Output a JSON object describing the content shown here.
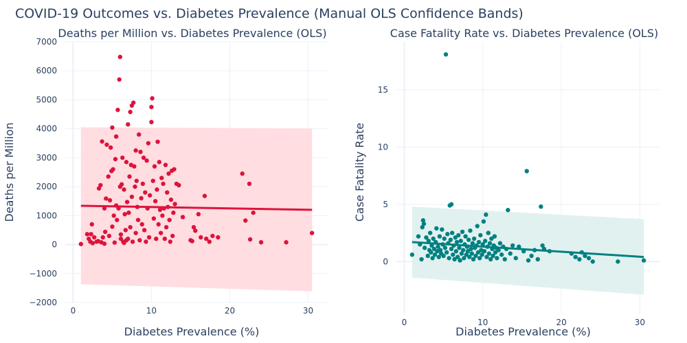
{
  "title": "COVID-19 Outcomes vs. Diabetes Prevalence (Manual OLS Confidence Bands)",
  "chart_data": [
    {
      "type": "scatter",
      "title": "Deaths per Million vs. Diabetes Prevalence (OLS)",
      "xlabel": "Diabetes Prevalence (%)",
      "ylabel": "Deaths per Million",
      "xlim": [
        -1,
        32.5
      ],
      "ylim": [
        -2000,
        7000
      ],
      "xticks": [
        0,
        10,
        20,
        30
      ],
      "yticks": [
        -2000,
        -1000,
        0,
        1000,
        2000,
        3000,
        4000,
        5000,
        6000,
        7000
      ],
      "grid": true,
      "point_color": "#dc143c",
      "line_color": "#dc143c",
      "band_color": "#ffdde1",
      "fit_line": [
        [
          1.0,
          1340
        ],
        [
          30.5,
          1200
        ]
      ],
      "band_upper": [
        [
          1.0,
          4050
        ],
        [
          30.5,
          4010
        ]
      ],
      "band_lower": [
        [
          1.0,
          -1370
        ],
        [
          30.5,
          -1610
        ]
      ],
      "points": [
        [
          1.0,
          20
        ],
        [
          1.8,
          360
        ],
        [
          2.0,
          200
        ],
        [
          2.2,
          100
        ],
        [
          2.3,
          360
        ],
        [
          2.4,
          700
        ],
        [
          2.5,
          50
        ],
        [
          2.7,
          250
        ],
        [
          3.0,
          100
        ],
        [
          3.2,
          120
        ],
        [
          3.3,
          1940
        ],
        [
          3.5,
          2050
        ],
        [
          3.6,
          80
        ],
        [
          3.7,
          3560
        ],
        [
          3.8,
          250
        ],
        [
          4.0,
          1250
        ],
        [
          4.0,
          30
        ],
        [
          4.1,
          440
        ],
        [
          4.2,
          1590
        ],
        [
          4.3,
          3450
        ],
        [
          4.5,
          2350
        ],
        [
          4.6,
          300
        ],
        [
          4.7,
          1530
        ],
        [
          4.8,
          3350
        ],
        [
          4.9,
          2540
        ],
        [
          5.0,
          4040
        ],
        [
          5.0,
          620
        ],
        [
          5.1,
          2600
        ],
        [
          5.2,
          1000
        ],
        [
          5.3,
          70
        ],
        [
          5.4,
          2950
        ],
        [
          5.5,
          1350
        ],
        [
          5.5,
          3730
        ],
        [
          5.6,
          850
        ],
        [
          5.7,
          4650
        ],
        [
          5.8,
          1250
        ],
        [
          5.9,
          5700
        ],
        [
          6.0,
          6480
        ],
        [
          6.0,
          2000
        ],
        [
          6.1,
          350
        ],
        [
          6.1,
          200
        ],
        [
          6.2,
          2080
        ],
        [
          6.3,
          3000
        ],
        [
          6.4,
          100
        ],
        [
          6.5,
          1900
        ],
        [
          6.5,
          60
        ],
        [
          6.6,
          1050
        ],
        [
          6.7,
          500
        ],
        [
          6.8,
          2850
        ],
        [
          6.8,
          150
        ],
        [
          6.9,
          1470
        ],
        [
          7.0,
          4150
        ],
        [
          7.0,
          200
        ],
        [
          7.1,
          1100
        ],
        [
          7.2,
          2350
        ],
        [
          7.3,
          600
        ],
        [
          7.3,
          4580
        ],
        [
          7.4,
          2750
        ],
        [
          7.5,
          1650
        ],
        [
          7.5,
          4800
        ],
        [
          7.6,
          100
        ],
        [
          7.7,
          4900
        ],
        [
          7.8,
          2700
        ],
        [
          7.9,
          2000
        ],
        [
          8.0,
          3250
        ],
        [
          8.0,
          400
        ],
        [
          8.1,
          2200
        ],
        [
          8.2,
          1300
        ],
        [
          8.3,
          850
        ],
        [
          8.4,
          3800
        ],
        [
          8.5,
          150
        ],
        [
          8.6,
          3200
        ],
        [
          8.7,
          1600
        ],
        [
          8.8,
          700
        ],
        [
          8.9,
          2100
        ],
        [
          9.0,
          3000
        ],
        [
          9.1,
          500
        ],
        [
          9.2,
          1800
        ],
        [
          9.3,
          100
        ],
        [
          9.4,
          2900
        ],
        [
          9.5,
          1250
        ],
        [
          9.6,
          3500
        ],
        [
          9.7,
          250
        ],
        [
          9.8,
          1700
        ],
        [
          10.0,
          4230
        ],
        [
          10.0,
          4750
        ],
        [
          10.1,
          5050
        ],
        [
          10.2,
          2200
        ],
        [
          10.3,
          900
        ],
        [
          10.4,
          2700
        ],
        [
          10.5,
          1500
        ],
        [
          10.6,
          200
        ],
        [
          10.7,
          1900
        ],
        [
          10.8,
          3550
        ],
        [
          10.9,
          700
        ],
        [
          11.0,
          2850
        ],
        [
          11.1,
          1200
        ],
        [
          11.2,
          400
        ],
        [
          11.3,
          2300
        ],
        [
          11.4,
          1000
        ],
        [
          11.5,
          2100
        ],
        [
          11.6,
          1250
        ],
        [
          11.7,
          200
        ],
        [
          11.8,
          2750
        ],
        [
          11.9,
          600
        ],
        [
          12.0,
          1800
        ],
        [
          12.1,
          1300
        ],
        [
          12.2,
          2450
        ],
        [
          12.3,
          850
        ],
        [
          12.4,
          100
        ],
        [
          12.5,
          1550
        ],
        [
          12.6,
          2550
        ],
        [
          12.7,
          300
        ],
        [
          12.8,
          1100
        ],
        [
          12.9,
          2600
        ],
        [
          13.0,
          1400
        ],
        [
          13.2,
          2100
        ],
        [
          13.5,
          2050
        ],
        [
          14.0,
          950
        ],
        [
          15.0,
          150
        ],
        [
          15.2,
          120
        ],
        [
          15.4,
          600
        ],
        [
          15.6,
          480
        ],
        [
          16.0,
          1050
        ],
        [
          16.3,
          250
        ],
        [
          16.8,
          1680
        ],
        [
          17.0,
          200
        ],
        [
          17.4,
          100
        ],
        [
          17.8,
          300
        ],
        [
          18.5,
          250
        ],
        [
          21.6,
          2450
        ],
        [
          22.0,
          830
        ],
        [
          22.5,
          2100
        ],
        [
          22.6,
          180
        ],
        [
          23.0,
          1100
        ],
        [
          24.0,
          80
        ],
        [
          27.2,
          80
        ],
        [
          30.5,
          400
        ]
      ]
    },
    {
      "type": "scatter",
      "title": "Case Fatality Rate vs. Diabetes Prevalence (OLS)",
      "xlabel": "Diabetes Prevalence (%)",
      "ylabel": "Case Fatality Rate",
      "xlim": [
        -1,
        32.5
      ],
      "ylim": [
        -4.6,
        19.2
      ],
      "xticks": [
        0,
        10,
        20,
        30
      ],
      "yticks": [
        0,
        5,
        10,
        15
      ],
      "grid": true,
      "point_color": "#008080",
      "line_color": "#008080",
      "band_color": "#e1f1f0",
      "fit_line": [
        [
          1.0,
          1.7
        ],
        [
          30.5,
          0.4
        ]
      ],
      "band_upper": [
        [
          1.0,
          4.8
        ],
        [
          30.5,
          3.7
        ]
      ],
      "band_lower": [
        [
          1.0,
          -1.4
        ],
        [
          30.5,
          -2.9
        ]
      ],
      "points": [
        [
          1.0,
          0.6
        ],
        [
          1.8,
          2.2
        ],
        [
          2.0,
          1.5
        ],
        [
          2.2,
          0.2
        ],
        [
          2.3,
          3.0
        ],
        [
          2.4,
          3.6
        ],
        [
          2.5,
          3.3
        ],
        [
          2.6,
          1.2
        ],
        [
          2.8,
          2.1
        ],
        [
          3.0,
          0.5
        ],
        [
          3.1,
          1.8
        ],
        [
          3.2,
          1.0
        ],
        [
          3.3,
          2.5
        ],
        [
          3.4,
          0.8
        ],
        [
          3.5,
          1.4
        ],
        [
          3.6,
          0.3
        ],
        [
          3.7,
          2.0
        ],
        [
          3.8,
          1.1
        ],
        [
          3.9,
          0.6
        ],
        [
          4.0,
          1.7
        ],
        [
          4.1,
          2.9
        ],
        [
          4.2,
          0.9
        ],
        [
          4.3,
          1.3
        ],
        [
          4.4,
          0.4
        ],
        [
          4.5,
          2.2
        ],
        [
          4.6,
          1.0
        ],
        [
          4.7,
          0.7
        ],
        [
          4.8,
          2.8
        ],
        [
          4.9,
          1.5
        ],
        [
          5.0,
          0.5
        ],
        [
          5.1,
          2.0
        ],
        [
          5.2,
          1.2
        ],
        [
          5.3,
          18.1
        ],
        [
          5.4,
          0.8
        ],
        [
          5.5,
          2.4
        ],
        [
          5.6,
          1.6
        ],
        [
          5.7,
          0.3
        ],
        [
          5.8,
          4.9
        ],
        [
          5.9,
          1.9
        ],
        [
          6.0,
          5.0
        ],
        [
          6.0,
          1.1
        ],
        [
          6.1,
          2.5
        ],
        [
          6.2,
          0.6
        ],
        [
          6.3,
          1.4
        ],
        [
          6.4,
          0.2
        ],
        [
          6.5,
          2.1
        ],
        [
          6.6,
          0.9
        ],
        [
          6.7,
          1.7
        ],
        [
          6.8,
          0.4
        ],
        [
          6.9,
          2.3
        ],
        [
          7.0,
          1.2
        ],
        [
          7.1,
          0.1
        ],
        [
          7.2,
          1.8
        ],
        [
          7.3,
          0.7
        ],
        [
          7.4,
          2.6
        ],
        [
          7.5,
          1.0
        ],
        [
          7.6,
          0.3
        ],
        [
          7.7,
          1.5
        ],
        [
          7.8,
          2.2
        ],
        [
          7.9,
          0.6
        ],
        [
          8.0,
          1.3
        ],
        [
          8.1,
          0.9
        ],
        [
          8.2,
          1.9
        ],
        [
          8.3,
          0.4
        ],
        [
          8.4,
          2.7
        ],
        [
          8.5,
          1.1
        ],
        [
          8.6,
          0.7
        ],
        [
          8.7,
          1.6
        ],
        [
          8.8,
          0.2
        ],
        [
          8.9,
          2.0
        ],
        [
          9.0,
          1.2
        ],
        [
          9.1,
          0.5
        ],
        [
          9.2,
          1.4
        ],
        [
          9.3,
          3.1
        ],
        [
          9.4,
          0.8
        ],
        [
          9.5,
          1.7
        ],
        [
          9.6,
          0.3
        ],
        [
          9.7,
          2.3
        ],
        [
          9.8,
          1.0
        ],
        [
          9.9,
          0.6
        ],
        [
          10.0,
          1.5
        ],
        [
          10.1,
          3.5
        ],
        [
          10.2,
          0.9
        ],
        [
          10.3,
          1.8
        ],
        [
          10.4,
          4.1
        ],
        [
          10.5,
          0.4
        ],
        [
          10.6,
          1.3
        ],
        [
          10.7,
          2.5
        ],
        [
          10.8,
          0.7
        ],
        [
          10.9,
          1.6
        ],
        [
          11.0,
          0.2
        ],
        [
          11.1,
          2.0
        ],
        [
          11.2,
          1.1
        ],
        [
          11.3,
          0.5
        ],
        [
          11.4,
          1.4
        ],
        [
          11.5,
          2.2
        ],
        [
          11.6,
          0.8
        ],
        [
          11.7,
          1.2
        ],
        [
          11.8,
          0.3
        ],
        [
          12.0,
          1.0
        ],
        [
          12.2,
          1.6
        ],
        [
          12.4,
          0.6
        ],
        [
          12.6,
          1.3
        ],
        [
          12.8,
          0.2
        ],
        [
          13.0,
          1.1
        ],
        [
          13.2,
          4.5
        ],
        [
          13.5,
          0.7
        ],
        [
          13.8,
          1.4
        ],
        [
          14.2,
          0.3
        ],
        [
          14.6,
          1.3
        ],
        [
          15.2,
          0.9
        ],
        [
          15.6,
          7.9
        ],
        [
          15.8,
          0.1
        ],
        [
          16.2,
          0.5
        ],
        [
          16.6,
          1.0
        ],
        [
          17.0,
          0.2
        ],
        [
          17.4,
          4.8
        ],
        [
          17.6,
          1.4
        ],
        [
          17.8,
          1.1
        ],
        [
          18.5,
          0.9
        ],
        [
          21.3,
          0.7
        ],
        [
          21.8,
          0.4
        ],
        [
          22.3,
          0.2
        ],
        [
          22.6,
          0.8
        ],
        [
          23.0,
          0.5
        ],
        [
          23.5,
          0.3
        ],
        [
          24.0,
          0.0
        ],
        [
          27.2,
          0.0
        ],
        [
          30.5,
          0.1
        ]
      ]
    }
  ]
}
